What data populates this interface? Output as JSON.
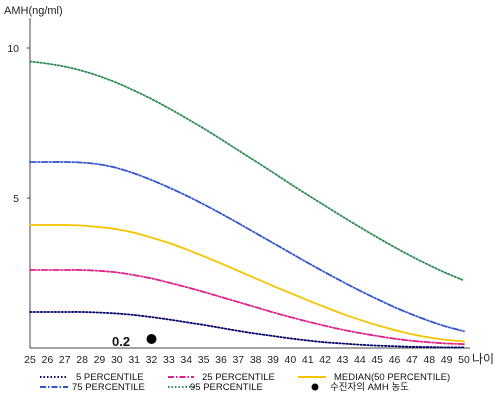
{
  "chart_data": {
    "type": "line",
    "ylabel": "AMH(ng/ml)",
    "xlabel": "나이",
    "x": [
      25,
      26,
      27,
      28,
      29,
      30,
      31,
      32,
      33,
      34,
      35,
      36,
      37,
      38,
      39,
      40,
      41,
      42,
      43,
      44,
      45,
      46,
      47,
      48,
      49,
      50
    ],
    "xlim": [
      25,
      50
    ],
    "ylim": [
      0,
      11
    ],
    "yticks": [
      5,
      10
    ],
    "grid": false,
    "legend_position": "bottom",
    "series": [
      {
        "name": "5 PERCENTILE",
        "color": "#000066",
        "dash": "dot",
        "values": [
          1.2,
          1.2,
          1.2,
          1.2,
          1.18,
          1.15,
          1.1,
          1.03,
          0.95,
          0.86,
          0.77,
          0.67,
          0.57,
          0.48,
          0.4,
          0.32,
          0.25,
          0.19,
          0.15,
          0.11,
          0.08,
          0.06,
          0.04,
          0.03,
          0.02,
          0.02
        ]
      },
      {
        "name": "25 PERCENTILE",
        "color": "#e0208a",
        "dash": "dashdot",
        "values": [
          2.6,
          2.6,
          2.6,
          2.6,
          2.57,
          2.52,
          2.43,
          2.32,
          2.18,
          2.03,
          1.87,
          1.7,
          1.53,
          1.36,
          1.19,
          1.03,
          0.88,
          0.74,
          0.61,
          0.5,
          0.4,
          0.31,
          0.24,
          0.19,
          0.15,
          0.13
        ]
      },
      {
        "name": "MEDIAN(50 PERCENTILE)",
        "color": "#f5c400",
        "dash": "solid",
        "values": [
          4.1,
          4.1,
          4.1,
          4.08,
          4.03,
          3.96,
          3.84,
          3.68,
          3.5,
          3.29,
          3.06,
          2.82,
          2.57,
          2.32,
          2.07,
          1.83,
          1.59,
          1.36,
          1.14,
          0.94,
          0.76,
          0.6,
          0.46,
          0.35,
          0.27,
          0.22
        ]
      },
      {
        "name": "75 PERCENTILE",
        "color": "#3355cc",
        "dash": "dashdot",
        "values": [
          6.2,
          6.2,
          6.2,
          6.18,
          6.12,
          6.0,
          5.82,
          5.6,
          5.35,
          5.08,
          4.79,
          4.48,
          4.16,
          3.83,
          3.5,
          3.17,
          2.84,
          2.52,
          2.21,
          1.91,
          1.63,
          1.36,
          1.12,
          0.9,
          0.71,
          0.56
        ]
      },
      {
        "name": "95 PERCENTILE",
        "color": "#2e8b57",
        "dash": "dot",
        "values": [
          9.55,
          9.48,
          9.38,
          9.24,
          9.06,
          8.84,
          8.58,
          8.3,
          7.99,
          7.66,
          7.32,
          6.96,
          6.59,
          6.22,
          5.85,
          5.47,
          5.1,
          4.74,
          4.38,
          4.03,
          3.69,
          3.36,
          3.05,
          2.76,
          2.49,
          2.25
        ]
      }
    ],
    "marker": {
      "name": "수진자의 AMH 농도",
      "x": 32,
      "y": 0.2,
      "label": "0.2",
      "color": "#000000"
    }
  }
}
